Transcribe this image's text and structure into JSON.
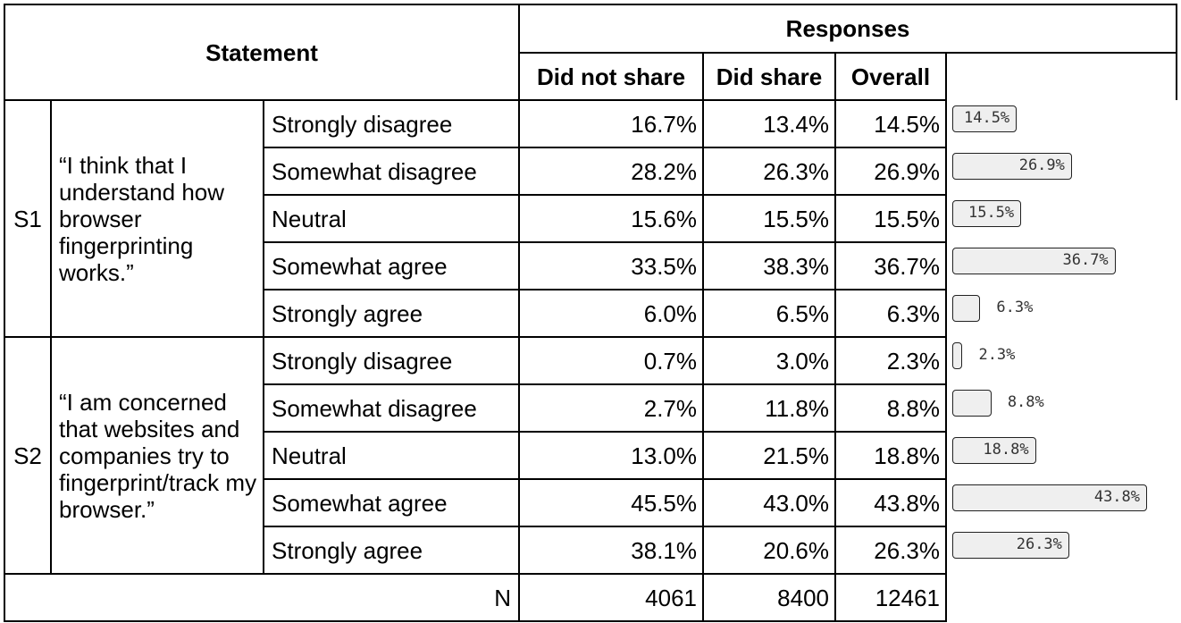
{
  "headers": {
    "statement": "Statement",
    "responses": "Responses",
    "did_not_share": "Did not share",
    "did_share": "Did share",
    "overall": "Overall"
  },
  "statements": [
    {
      "id": "S1",
      "text": "“I think that I understand how browser fingerprinting works.”",
      "rows": [
        {
          "option": "Strongly disagree",
          "did_not_share": "16.7%",
          "did_share": "13.4%",
          "overall": "14.5%",
          "bar_value": 14.5,
          "bar_label": "14.5%"
        },
        {
          "option": "Somewhat disagree",
          "did_not_share": "28.2%",
          "did_share": "26.3%",
          "overall": "26.9%",
          "bar_value": 26.9,
          "bar_label": "26.9%"
        },
        {
          "option": "Neutral",
          "did_not_share": "15.6%",
          "did_share": "15.5%",
          "overall": "15.5%",
          "bar_value": 15.5,
          "bar_label": "15.5%"
        },
        {
          "option": "Somewhat agree",
          "did_not_share": "33.5%",
          "did_share": "38.3%",
          "overall": "36.7%",
          "bar_value": 36.7,
          "bar_label": "36.7%"
        },
        {
          "option": "Strongly agree",
          "did_not_share": "6.0%",
          "did_share": "6.5%",
          "overall": "6.3%",
          "bar_value": 6.3,
          "bar_label": "6.3%"
        }
      ]
    },
    {
      "id": "S2",
      "text": "“I am concerned that websites and companies try to fingerprint/track my browser.”",
      "rows": [
        {
          "option": "Strongly disagree",
          "did_not_share": "0.7%",
          "did_share": "3.0%",
          "overall": "2.3%",
          "bar_value": 2.3,
          "bar_label": "2.3%"
        },
        {
          "option": "Somewhat disagree",
          "did_not_share": "2.7%",
          "did_share": "11.8%",
          "overall": "8.8%",
          "bar_value": 8.8,
          "bar_label": "8.8%"
        },
        {
          "option": "Neutral",
          "did_not_share": "13.0%",
          "did_share": "21.5%",
          "overall": "18.8%",
          "bar_value": 18.8,
          "bar_label": "18.8%"
        },
        {
          "option": "Somewhat agree",
          "did_not_share": "45.5%",
          "did_share": "43.0%",
          "overall": "43.8%",
          "bar_value": 43.8,
          "bar_label": "43.8%"
        },
        {
          "option": "Strongly agree",
          "did_not_share": "38.1%",
          "did_share": "20.6%",
          "overall": "26.3%",
          "bar_value": 26.3,
          "bar_label": "26.3%"
        }
      ]
    }
  ],
  "totals": {
    "label": "N",
    "did_not_share": "4061",
    "did_share": "8400",
    "overall": "12461"
  }
}
